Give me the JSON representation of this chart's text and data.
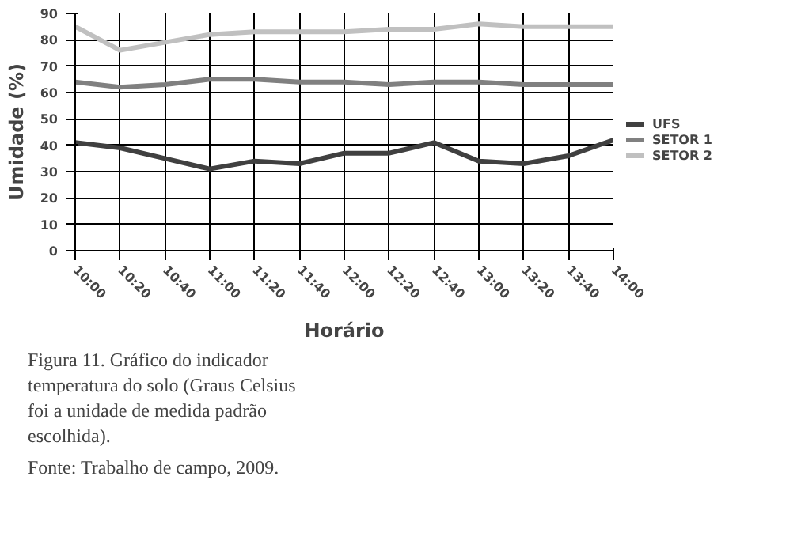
{
  "chart_data": {
    "type": "line",
    "xlabel": "Horário",
    "ylabel": "Umidade (%)",
    "categories": [
      "10:00",
      "10:20",
      "10:40",
      "11:00",
      "11:20",
      "11:40",
      "12:00",
      "12:20",
      "12:40",
      "13:00",
      "13:20",
      "13:40",
      "14:00"
    ],
    "series": [
      {
        "name": "UFS",
        "color": "#404040",
        "values": [
          41,
          39,
          35,
          31,
          34,
          33,
          37,
          37,
          41,
          34,
          33,
          36,
          42
        ]
      },
      {
        "name": "SETOR 1",
        "color": "#808080",
        "values": [
          64,
          62,
          63,
          65,
          65,
          64,
          64,
          63,
          64,
          64,
          63,
          63,
          63
        ]
      },
      {
        "name": "SETOR 2",
        "color": "#c0c0c0",
        "values": [
          85,
          76,
          79,
          82,
          83,
          83,
          83,
          84,
          84,
          86,
          85,
          85,
          85
        ]
      }
    ],
    "ylim": [
      0,
      90
    ],
    "yticks": [
      0,
      10,
      20,
      30,
      40,
      50,
      60,
      70,
      80,
      90
    ],
    "grid": true,
    "legend": "right",
    "marker": "none",
    "line_style": "solid",
    "annotations": [
      "Figura 11. Gráfico do indicador temperatura do solo (Graus Celsius foi a unidade de medida padrão escolhida).",
      "Fonte: Trabalho de campo, 2009."
    ]
  }
}
